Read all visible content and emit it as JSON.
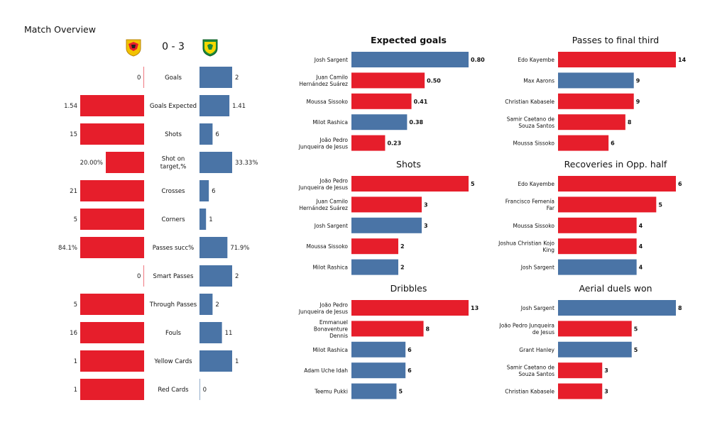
{
  "overview": {
    "title": "Match Overview",
    "score": "0 - 3",
    "home_color": "#e61e2b",
    "away_color": "#4a74a6",
    "chart_data": {
      "type": "bar",
      "orientation": "horizontal-diverging",
      "categories": [
        "Goals",
        "Goals Expected",
        "Shots",
        "Shot on target,%",
        "Crosses",
        "Corners",
        "Passes succ%",
        "Smart Passes",
        "Through Passes",
        "Fouls",
        "Yellow Cards",
        "Red Cards"
      ],
      "series": [
        {
          "values": [
            0,
            1.54,
            15,
            20.0,
            21,
            5,
            84.1,
            0,
            5,
            16,
            1,
            1
          ],
          "labels": [
            "0",
            "1.54",
            "15",
            "20.00%",
            "21",
            "5",
            "84.1%",
            "0",
            "5",
            "16",
            "1",
            "1"
          ],
          "color": "#e61e2b"
        },
        {
          "values": [
            2,
            1.41,
            6,
            33.33,
            6,
            1,
            71.9,
            2,
            2,
            11,
            1,
            0
          ],
          "labels": [
            "2",
            "1.41",
            "6",
            "33.33%",
            "6",
            "1",
            "71.9%",
            "2",
            "2",
            "11",
            "1",
            "0"
          ],
          "color": "#4a74a6"
        }
      ]
    }
  },
  "panels": [
    {
      "key": "xg",
      "title": "Expected goals",
      "bold": true,
      "chart_data": {
        "type": "bar",
        "orientation": "horizontal",
        "xlim": [
          0,
          0.8
        ],
        "categories": [
          "Josh Sargent",
          "Juan Camilo Hernández Suárez",
          "Moussa Sissoko",
          "Milot Rashica",
          "João Pedro Junqueira de Jesus"
        ],
        "category_lines": [
          [
            "Josh Sargent"
          ],
          [
            "Juan Camilo",
            "Hernández Suárez"
          ],
          [
            "Moussa Sissoko"
          ],
          [
            "Milot Rashica"
          ],
          [
            "João Pedro",
            "Junqueira de Jesus"
          ]
        ],
        "values": [
          0.8,
          0.5,
          0.41,
          0.38,
          0.23
        ],
        "labels": [
          "0.80",
          "0.50",
          "0.41",
          "0.38",
          "0.23"
        ],
        "team": [
          "away",
          "home",
          "home",
          "away",
          "home"
        ]
      }
    },
    {
      "key": "final-third",
      "title": "Passes to final third",
      "bold": false,
      "chart_data": {
        "type": "bar",
        "orientation": "horizontal",
        "xlim": [
          0,
          14
        ],
        "categories": [
          "Edo Kayembe",
          "Max Aarons",
          "Christian Kabasele",
          "Samir Caetano de Souza Santos",
          "Moussa Sissoko"
        ],
        "category_lines": [
          [
            "Edo Kayembe"
          ],
          [
            "Max Aarons"
          ],
          [
            "Christian Kabasele"
          ],
          [
            "Samir Caetano de",
            "Souza Santos"
          ],
          [
            "Moussa Sissoko"
          ]
        ],
        "values": [
          14,
          9,
          9,
          8,
          6
        ],
        "labels": [
          "14",
          "9",
          "9",
          "8",
          "6"
        ],
        "team": [
          "home",
          "away",
          "home",
          "home",
          "home"
        ]
      }
    },
    {
      "key": "shots",
      "title": "Shots",
      "bold": false,
      "chart_data": {
        "type": "bar",
        "orientation": "horizontal",
        "xlim": [
          0,
          5
        ],
        "categories": [
          "João Pedro Junqueira de Jesus",
          "Juan Camilo Hernández Suárez",
          "Josh Sargent",
          "Moussa Sissoko",
          "Milot Rashica"
        ],
        "category_lines": [
          [
            "João Pedro",
            "Junqueira de Jesus"
          ],
          [
            "Juan Camilo",
            "Hernández Suárez"
          ],
          [
            "Josh Sargent"
          ],
          [
            "Moussa Sissoko"
          ],
          [
            "Milot Rashica"
          ]
        ],
        "values": [
          5,
          3,
          3,
          2,
          2
        ],
        "labels": [
          "5",
          "3",
          "3",
          "2",
          "2"
        ],
        "team": [
          "home",
          "home",
          "away",
          "home",
          "away"
        ]
      }
    },
    {
      "key": "recoveries",
      "title": "Recoveries in Opp. half",
      "bold": false,
      "chart_data": {
        "type": "bar",
        "orientation": "horizontal",
        "xlim": [
          0,
          6
        ],
        "categories": [
          "Edo Kayembe",
          "Francisco Femenía Far",
          "Moussa Sissoko",
          "Joshua Christian Kojo King",
          "Josh Sargent"
        ],
        "category_lines": [
          [
            "Edo Kayembe"
          ],
          [
            "Francisco Femenía",
            "Far"
          ],
          [
            "Moussa Sissoko"
          ],
          [
            "Joshua Christian Kojo",
            "King"
          ],
          [
            "Josh Sargent"
          ]
        ],
        "values": [
          6,
          5,
          4,
          4,
          4
        ],
        "labels": [
          "6",
          "5",
          "4",
          "4",
          "4"
        ],
        "team": [
          "home",
          "home",
          "home",
          "home",
          "away"
        ]
      }
    },
    {
      "key": "dribbles",
      "title": "Dribbles",
      "bold": false,
      "chart_data": {
        "type": "bar",
        "orientation": "horizontal",
        "xlim": [
          0,
          13
        ],
        "categories": [
          "João Pedro Junqueira de Jesus",
          "Emmanuel Bonaventure Dennis",
          "Milot Rashica",
          "Adam Uche Idah",
          "Teemu Pukki"
        ],
        "category_lines": [
          [
            "João Pedro",
            "Junqueira de Jesus"
          ],
          [
            "Emmanuel",
            "Bonaventure",
            "Dennis"
          ],
          [
            "Milot Rashica"
          ],
          [
            "Adam Uche Idah"
          ],
          [
            "Teemu Pukki"
          ]
        ],
        "values": [
          13,
          8,
          6,
          6,
          5
        ],
        "labels": [
          "13",
          "8",
          "6",
          "6",
          "5"
        ],
        "team": [
          "home",
          "home",
          "away",
          "away",
          "away"
        ]
      }
    },
    {
      "key": "aerial",
      "title": "Aerial duels won",
      "bold": false,
      "chart_data": {
        "type": "bar",
        "orientation": "horizontal",
        "xlim": [
          0,
          8
        ],
        "categories": [
          "Josh Sargent",
          "João Pedro Junqueira de Jesus",
          "Grant Hanley",
          "Samir Caetano de Souza Santos",
          "Christian Kabasele"
        ],
        "category_lines": [
          [
            "Josh Sargent"
          ],
          [
            "João Pedro Junqueira",
            "de Jesus"
          ],
          [
            "Grant Hanley"
          ],
          [
            "Samir Caetano de",
            "Souza Santos"
          ],
          [
            "Christian Kabasele"
          ]
        ],
        "values": [
          8,
          5,
          5,
          3,
          3
        ],
        "labels": [
          "8",
          "5",
          "5",
          "3",
          "3"
        ],
        "team": [
          "away",
          "home",
          "away",
          "home",
          "home"
        ]
      }
    }
  ]
}
